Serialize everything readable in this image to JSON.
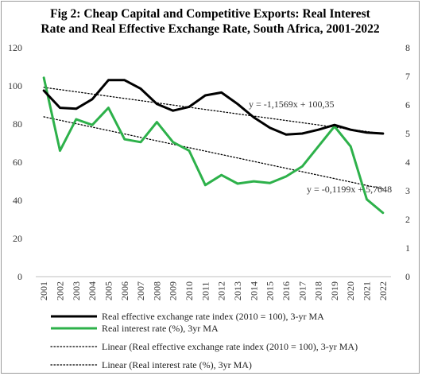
{
  "chart_data": {
    "type": "line",
    "title": "Fig 2: Cheap Capital and Competitive Exports: Real Interest Rate and Real Effective Exchange Rate, South Africa, 2001-2022",
    "title_lines": [
      "Fig 2: Cheap Capital and Competitive Exports: Real Interest",
      "Rate and Real Effective Exchange Rate, South Africa, 2001-2022"
    ],
    "categories": [
      "2001",
      "2002",
      "2003",
      "2004",
      "2005",
      "2006",
      "2007",
      "2008",
      "2009",
      "2010",
      "2011",
      "2012",
      "2013",
      "2014",
      "2015",
      "2016",
      "2017",
      "2018",
      "2019",
      "2020",
      "2021",
      "2022"
    ],
    "y_left": {
      "min": 0,
      "max": 120,
      "ticks": [
        "0",
        "20",
        "40",
        "60",
        "80",
        "100",
        "120"
      ]
    },
    "y_right": {
      "min": 0,
      "max": 8,
      "ticks": [
        "0",
        "1",
        "2",
        "3",
        "4",
        "5",
        "6",
        "7",
        "8"
      ]
    },
    "grid": false,
    "legend_position": "bottom",
    "series": [
      {
        "name": "Real effective exchange rate index (2010 = 100), 3-yr MA",
        "axis": "left",
        "color": "#000000",
        "style": "solid",
        "values": [
          97.5,
          88.5,
          88,
          93,
          103,
          103,
          98.5,
          90.5,
          87,
          89,
          95,
          96.5,
          90.5,
          83.5,
          78,
          74.5,
          75,
          77,
          79.5,
          77,
          75.5,
          75
        ]
      },
      {
        "name": "Real interest rate (%), 3yr MA",
        "axis": "right",
        "color": "#2db14a",
        "style": "solid",
        "values": [
          6.95,
          4.4,
          5.5,
          5.3,
          5.9,
          4.8,
          4.7,
          5.4,
          4.7,
          4.4,
          3.2,
          3.55,
          3.25,
          3.33,
          3.27,
          3.5,
          3.85,
          4.55,
          5.25,
          4.55,
          2.7,
          2.23
        ]
      },
      {
        "name": "Linear (Real effective exchange rate index (2010 = 100), 3-yr MA)",
        "axis": "left",
        "color": "#000000",
        "style": "dotted",
        "trend": {
          "slope": -1.1569,
          "intercept": 100.35
        }
      },
      {
        "name": "Linear (Real interest rate (%), 3yr MA)",
        "axis": "right",
        "color": "#000000",
        "style": "dotted",
        "trend": {
          "slope": -0.1199,
          "intercept": 5.7048
        }
      }
    ],
    "annotations": [
      "y = -1,1569x + 100,35",
      "y = -0,1199x + 5,7048"
    ]
  }
}
